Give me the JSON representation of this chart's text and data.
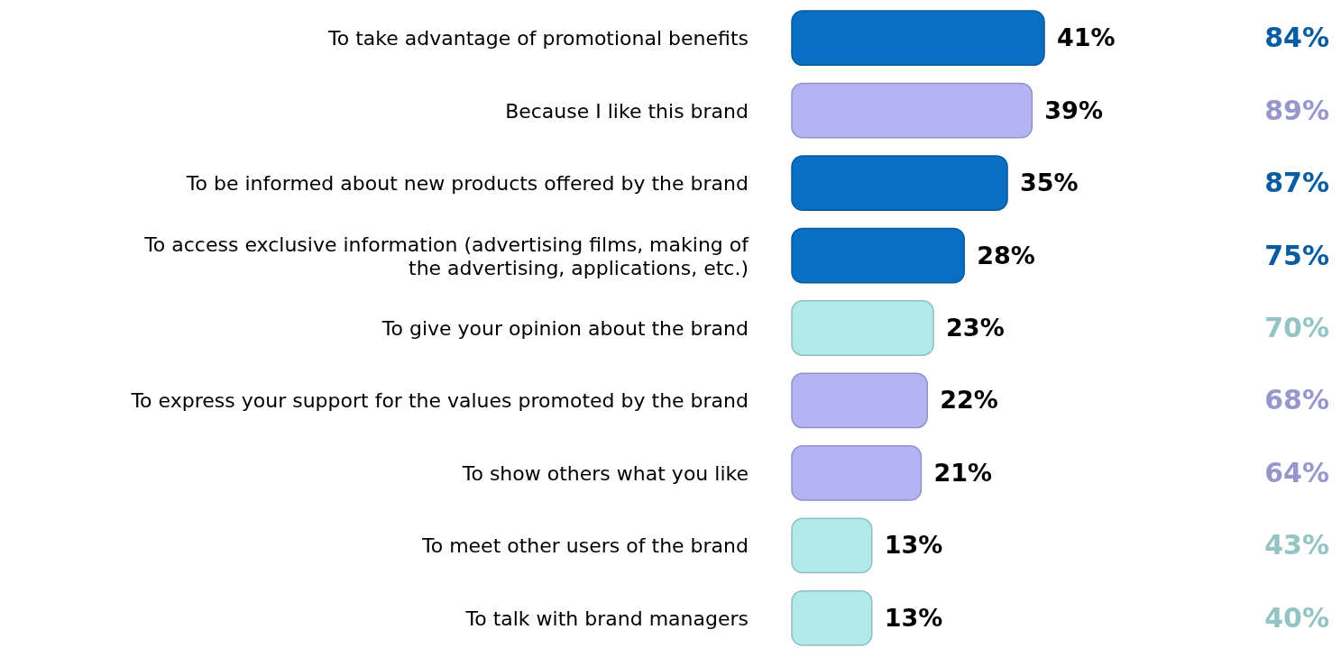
{
  "chart_data": {
    "type": "bar",
    "orientation": "horizontal",
    "categories": [
      "To take advantage of promotional benefits",
      "Because I like this brand",
      "To be informed about new products offered by the brand",
      "To access exclusive information (advertising films, making of the advertising, applications, etc.)",
      "To give your opinion about the brand",
      "To express your support for the values promoted by the brand",
      "To show others what you like",
      "To meet other users of the brand",
      "To talk with brand managers"
    ],
    "values": [
      41,
      39,
      35,
      28,
      23,
      22,
      21,
      13,
      13
    ],
    "value_labels": [
      "41%",
      "39%",
      "35%",
      "28%",
      "23%",
      "22%",
      "21%",
      "13%",
      "13%"
    ],
    "colors": [
      "#0a6fc2",
      "#b4b4f4",
      "#0a6fc2",
      "#0a6fc2",
      "#b2eaea",
      "#b4b4f4",
      "#b4b4f4",
      "#b2eaea",
      "#b2eaea"
    ],
    "annotations": [
      "84%",
      "89%",
      "87%",
      "75%",
      "70%",
      "68%",
      "64%",
      "43%",
      "40%"
    ]
  }
}
